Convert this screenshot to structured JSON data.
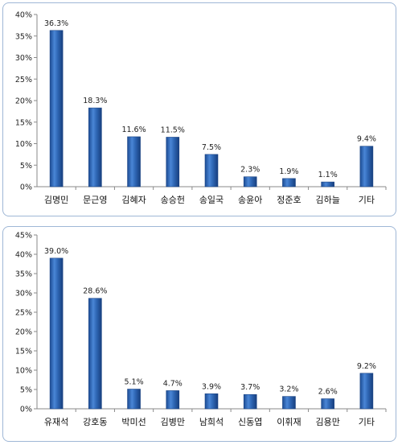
{
  "chart_data": [
    {
      "type": "bar",
      "categories": [
        "김명민",
        "문근영",
        "김혜자",
        "송승헌",
        "송일국",
        "송윤아",
        "정준호",
        "김하늘",
        "기타"
      ],
      "values": [
        36.3,
        18.3,
        11.6,
        11.5,
        7.5,
        2.3,
        1.9,
        1.1,
        9.4
      ],
      "value_labels": [
        "36.3%",
        "18.3%",
        "11.6%",
        "11.5%",
        "7.5%",
        "2.3%",
        "1.9%",
        "1.1%",
        "9.4%"
      ],
      "ylim": [
        0,
        40
      ],
      "yticks": [
        0,
        5,
        10,
        15,
        20,
        25,
        30,
        35,
        40
      ],
      "ytick_labels": [
        "0%",
        "5%",
        "10%",
        "15%",
        "20%",
        "25%",
        "30%",
        "35%",
        "40%"
      ],
      "grid": false,
      "bar_color": "#2f67b5"
    },
    {
      "type": "bar",
      "categories": [
        "유재석",
        "강호동",
        "박미선",
        "김병만",
        "남희석",
        "신동엽",
        "이휘재",
        "김용만",
        "기타"
      ],
      "values": [
        39.0,
        28.6,
        5.1,
        4.7,
        3.9,
        3.7,
        3.2,
        2.6,
        9.2
      ],
      "value_labels": [
        "39.0%",
        "28.6%",
        "5.1%",
        "4.7%",
        "3.9%",
        "3.7%",
        "3.2%",
        "2.6%",
        "9.2%"
      ],
      "ylim": [
        0,
        45
      ],
      "yticks": [
        0,
        5,
        10,
        15,
        20,
        25,
        30,
        35,
        40,
        45
      ],
      "ytick_labels": [
        "0%",
        "5%",
        "10%",
        "15%",
        "20%",
        "25%",
        "30%",
        "35%",
        "40%",
        "45%"
      ],
      "grid": false,
      "bar_color": "#2f67b5"
    }
  ]
}
